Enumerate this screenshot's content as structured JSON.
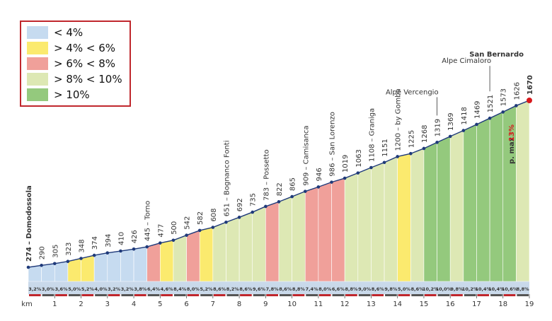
{
  "chart_data": {
    "type": "climb-profile",
    "legend": [
      {
        "label": "< 4%",
        "color": "#c6dbf0"
      },
      {
        "label": "> 4% < 6%",
        "color": "#fbea6e"
      },
      {
        "label": "> 6% < 8%",
        "color": "#f0a09a"
      },
      {
        "label": "> 8% < 10%",
        "color": "#dde8b4"
      },
      {
        "label": "> 10%",
        "color": "#94c97d"
      }
    ],
    "x": [
      0,
      0.5,
      1,
      1.5,
      2,
      2.5,
      3,
      3.5,
      4,
      4.5,
      5,
      5.5,
      6,
      6.5,
      7,
      7.5,
      8,
      8.5,
      9,
      9.5,
      10,
      10.5,
      11,
      11.5,
      12,
      12.5,
      13,
      13.5,
      14,
      14.5,
      15,
      15.5,
      16,
      16.5,
      17,
      17.5,
      18,
      18.5,
      19
    ],
    "values": [
      274,
      290,
      305,
      323,
      348,
      374,
      394,
      410,
      426,
      445,
      477,
      500,
      542,
      582,
      608,
      651,
      692,
      735,
      783,
      822,
      865,
      909,
      946,
      986,
      1019,
      1063,
      1108,
      1151,
      1200,
      1225,
      1268,
      1319,
      1369,
      1418,
      1469,
      1521,
      1573,
      1626,
      1670
    ],
    "point_names": [
      "– Domodossola",
      null,
      null,
      null,
      null,
      null,
      null,
      null,
      null,
      "– Torno",
      null,
      null,
      null,
      null,
      null,
      "– Bognanco Fonti",
      null,
      null,
      "– Possetto",
      null,
      null,
      "– Camisanca",
      null,
      "– San Lorenzo",
      null,
      null,
      "– Graniga",
      null,
      "– by Gomba",
      null,
      null,
      null,
      null,
      null,
      null,
      null,
      null,
      null,
      null
    ],
    "gradients": [
      3.2,
      3.0,
      3.6,
      5.0,
      5.2,
      4.0,
      3.2,
      3.2,
      3.8,
      6.4,
      4.6,
      8.4,
      8.0,
      5.2,
      8.6,
      8.2,
      8.6,
      9.6,
      7.8,
      8.6,
      8.8,
      7.4,
      8.0,
      6.6,
      8.8,
      9.0,
      8.6,
      9.8,
      5.0,
      8.6,
      10.2,
      10.0,
      9.8,
      10.2,
      10.4,
      10.4,
      10.6,
      8.8
    ],
    "gradient_labels": [
      "3,2%",
      "3,0%",
      "3,6%",
      "5,0%",
      "5,2%",
      "4,0%",
      "3,2%",
      "3,2%",
      "3,8%",
      "6,4%",
      "4,6%",
      "8,4%",
      "8,0%",
      "5,2%",
      "8,6%",
      "8,2%",
      "8,6%",
      "9,6%",
      "7,8%",
      "8,6%",
      "8,8%",
      "7,4%",
      "8,0%",
      "6,6%",
      "8,8%",
      "9,0%",
      "8,6%",
      "9,8%",
      "5,0%",
      "8,6%",
      "10,2%",
      "10,0%",
      "9,8%",
      "10,2%",
      "10,4%",
      "10,4%",
      "10,6%",
      "8,8%"
    ],
    "segment_colors": [
      "#c6dbf0",
      "#c6dbf0",
      "#c6dbf0",
      "#fbea6e",
      "#fbea6e",
      "#c6dbf0",
      "#c6dbf0",
      "#c6dbf0",
      "#c6dbf0",
      "#f0a09a",
      "#fbea6e",
      "#dde8b4",
      "#f0a09a",
      "#fbea6e",
      "#dde8b4",
      "#dde8b4",
      "#dde8b4",
      "#dde8b4",
      "#f0a09a",
      "#dde8b4",
      "#dde8b4",
      "#f0a09a",
      "#f0a09a",
      "#f0a09a",
      "#dde8b4",
      "#dde8b4",
      "#dde8b4",
      "#dde8b4",
      "#fbea6e",
      "#dde8b4",
      "#94c97d",
      "#94c97d",
      "#dde8b4",
      "#94c97d",
      "#94c97d",
      "#94c97d",
      "#94c97d",
      "#dde8b4"
    ],
    "xlabel": "km",
    "xticks": [
      1,
      2,
      3,
      4,
      5,
      6,
      7,
      8,
      9,
      10,
      11,
      12,
      13,
      14,
      15,
      16,
      17,
      18,
      19
    ],
    "xlim": [
      0,
      19
    ],
    "annotations": [
      {
        "text": "Alpe Vercengio",
        "at": 31
      },
      {
        "text": "Alpe Cimaloro",
        "at": 35
      },
      {
        "text": "San Bernardo",
        "at": 38
      }
    ],
    "max_grade_text": "p. max",
    "max_grade_label": "13%"
  }
}
